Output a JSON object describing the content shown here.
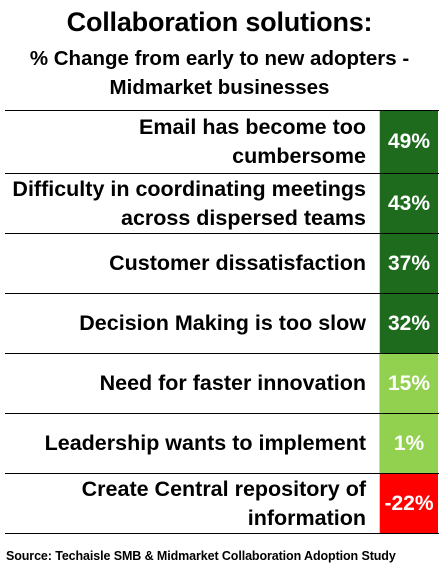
{
  "chart_data": {
    "type": "table",
    "title": "Collaboration solutions:",
    "subtitle": "% Change from early to new adopters - Midmarket businesses",
    "categories": [
      "Email has become too cumbersome",
      "Difficulty in coordinating meetings across dispersed teams",
      "Customer dissatisfaction",
      "Decision Making is too slow",
      "Need for faster innovation",
      "Leadership wants to implement",
      "Create Central repository of information"
    ],
    "values": [
      49,
      43,
      37,
      32,
      15,
      1,
      -22
    ],
    "value_labels": [
      "49%",
      "43%",
      "37%",
      "32%",
      "15%",
      "1%",
      "-22%"
    ],
    "colors": {
      "strong_positive": "#1e6b1e",
      "mild_positive": "#92d050",
      "negative": "#ff0000"
    }
  },
  "source": "Source: Techaisle SMB & Midmarket Collaboration Adoption Study"
}
